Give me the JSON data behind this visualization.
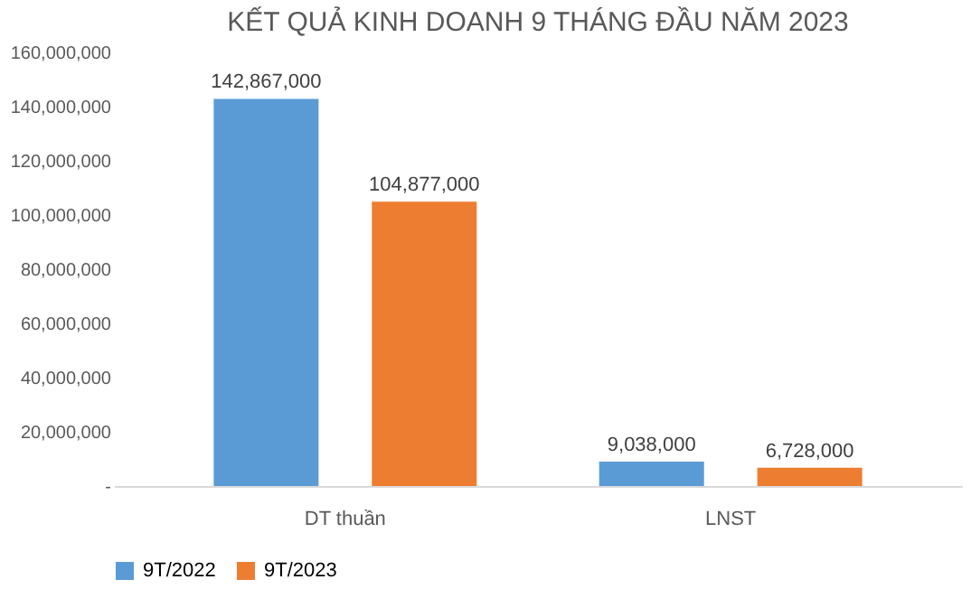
{
  "chart_data": {
    "type": "bar",
    "title": "KẾT QUẢ KINH DOANH 9 THÁNG ĐẦU NĂM 2023",
    "categories": [
      "DT thuần",
      "LNST"
    ],
    "series": [
      {
        "name": "9T/2022",
        "color": "#5b9bd5",
        "values": [
          142867000,
          9038000
        ],
        "value_labels": [
          "142,867,000",
          "9,038,000"
        ]
      },
      {
        "name": "9T/2023",
        "color": "#ed7d31",
        "values": [
          104877000,
          6728000
        ],
        "value_labels": [
          "104,877,000",
          "6,728,000"
        ]
      }
    ],
    "ylim": [
      0,
      160000000
    ],
    "yticks": [
      {
        "value": 0,
        "label": "-"
      },
      {
        "value": 20000000,
        "label": "20,000,000"
      },
      {
        "value": 40000000,
        "label": "40,000,000"
      },
      {
        "value": 60000000,
        "label": "60,000,000"
      },
      {
        "value": 80000000,
        "label": "80,000,000"
      },
      {
        "value": 100000000,
        "label": "100,000,000"
      },
      {
        "value": 120000000,
        "label": "120,000,000"
      },
      {
        "value": 140000000,
        "label": "140,000,000"
      },
      {
        "value": 160000000,
        "label": "160,000,000"
      }
    ],
    "grid": false,
    "legend": "bottom"
  }
}
